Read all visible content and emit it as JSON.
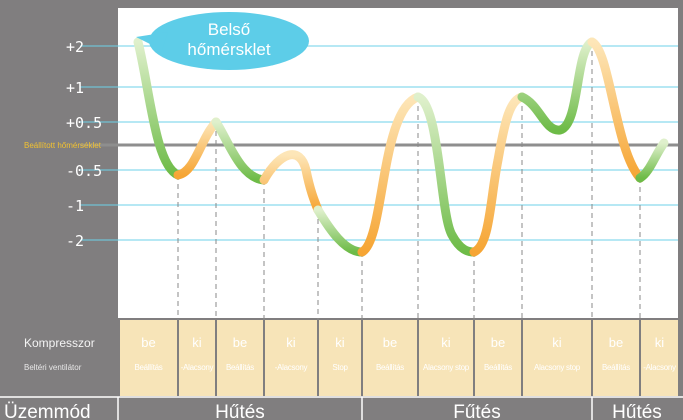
{
  "bubble": {
    "line1": "Belső",
    "line2": "hőmérsklet"
  },
  "y_ticks": [
    {
      "label": "+2",
      "value": 2
    },
    {
      "label": "+1",
      "value": 1
    },
    {
      "label": "+0.5",
      "value": 0.5
    },
    {
      "label": "-0.5",
      "value": -0.5
    },
    {
      "label": "-1",
      "value": -1
    },
    {
      "label": "-2",
      "value": -2
    }
  ],
  "setpoint_label": "Beállított hőmérséklet",
  "rows": {
    "compressor_label": "Kompresszor",
    "fan_label": "Beltéri ventilátor",
    "mode_label": "Üzemmód"
  },
  "segments": [
    {
      "comp": "be",
      "fan": "Beállítás"
    },
    {
      "comp": "ki",
      "fan": "-Alacsony"
    },
    {
      "comp": "be",
      "fan": "Beállítás"
    },
    {
      "comp": "ki",
      "fan": "-Alacsony"
    },
    {
      "comp": "ki",
      "fan": "Stop"
    },
    {
      "comp": "be",
      "fan": "Beállítás"
    },
    {
      "comp": "ki",
      "fan": "Alacsony stop"
    },
    {
      "comp": "be",
      "fan": "Beállítás"
    },
    {
      "comp": "ki",
      "fan": "Alacsony stop"
    },
    {
      "comp": "be",
      "fan": "Beállítás"
    },
    {
      "comp": "ki",
      "fan": "-Alacsony"
    }
  ],
  "modes": [
    {
      "label": "Hűtés"
    },
    {
      "label": "Fűtés"
    },
    {
      "label": "Hűtés"
    }
  ],
  "colors": {
    "background": "#807e7f",
    "chart_bg": "#ffffff",
    "gridline": "#6dd2ea",
    "setpoint_line": "#8e8e8e",
    "label_band": "#807e7f",
    "segment_bg": "#f7e4b8",
    "compressor_text": "#ffffff",
    "mode_bg": "#807e7f",
    "green": "#6dbb47",
    "light_green": "#d6ecc0",
    "orange": "#f6a534",
    "light_orange": "#fde3b0",
    "bubble": "#5dcde8"
  }
}
